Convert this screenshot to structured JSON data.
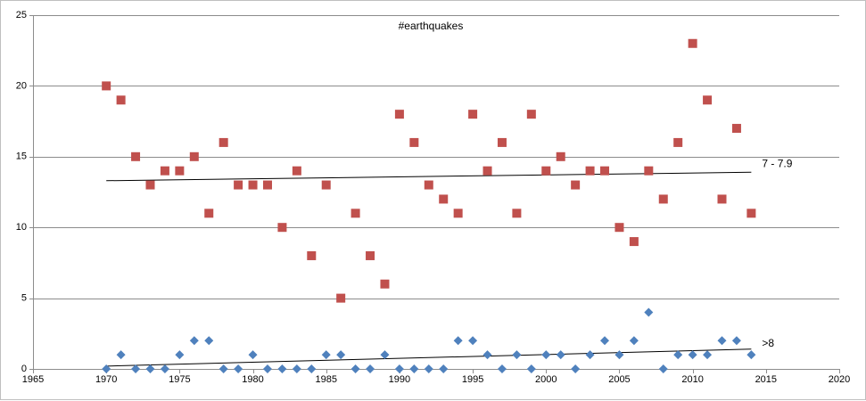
{
  "chart_data": {
    "type": "scatter",
    "title": "#earthquakes",
    "xlabel": "",
    "ylabel": "",
    "xlim": [
      1965,
      2020
    ],
    "ylim": [
      0,
      25
    ],
    "x_ticks": [
      1965,
      1970,
      1975,
      1980,
      1985,
      1990,
      1995,
      2000,
      2005,
      2010,
      2015,
      2020
    ],
    "y_ticks": [
      0,
      5,
      10,
      15,
      20,
      25
    ],
    "grid": "horizontal",
    "legend": "none",
    "series": [
      {
        "name": "7 - 7.9",
        "color": "#c0504d",
        "marker": "square",
        "x": [
          1970,
          1971,
          1972,
          1973,
          1974,
          1975,
          1976,
          1977,
          1978,
          1979,
          1980,
          1981,
          1982,
          1983,
          1984,
          1985,
          1986,
          1987,
          1988,
          1989,
          1990,
          1991,
          1992,
          1993,
          1994,
          1995,
          1996,
          1997,
          1998,
          1999,
          2000,
          2001,
          2002,
          2003,
          2004,
          2005,
          2006,
          2007,
          2008,
          2009,
          2010,
          2011,
          2012,
          2013,
          2014
        ],
        "y": [
          20,
          19,
          15,
          13,
          14,
          14,
          15,
          11,
          16,
          13,
          13,
          13,
          10,
          14,
          8,
          13,
          5,
          11,
          8,
          6,
          18,
          16,
          13,
          12,
          11,
          18,
          14,
          16,
          11,
          18,
          14,
          15,
          13,
          14,
          14,
          10,
          9,
          14,
          12,
          16,
          23,
          19,
          12,
          17,
          11
        ],
        "trendline": {
          "x": [
            1970,
            2014
          ],
          "y": [
            13.3,
            13.9
          ]
        }
      },
      {
        "name": ">8",
        "color": "#4f81bd",
        "marker": "diamond",
        "x": [
          1970,
          1971,
          1972,
          1973,
          1974,
          1975,
          1976,
          1977,
          1978,
          1979,
          1980,
          1981,
          1982,
          1983,
          1984,
          1985,
          1986,
          1987,
          1988,
          1989,
          1990,
          1991,
          1992,
          1993,
          1994,
          1995,
          1996,
          1997,
          1998,
          1999,
          2000,
          2001,
          2002,
          2003,
          2004,
          2005,
          2006,
          2007,
          2008,
          2009,
          2010,
          2011,
          2012,
          2013,
          2014
        ],
        "y": [
          0,
          1,
          0,
          0,
          0,
          1,
          2,
          2,
          0,
          0,
          1,
          0,
          0,
          0,
          0,
          1,
          1,
          0,
          0,
          1,
          0,
          0,
          0,
          0,
          2,
          2,
          1,
          0,
          1,
          0,
          1,
          1,
          0,
          1,
          2,
          1,
          2,
          4,
          0,
          1,
          1,
          1,
          2,
          2,
          1
        ],
        "trendline": {
          "x": [
            1970,
            2014
          ],
          "y": [
            0.2,
            1.4
          ]
        }
      }
    ]
  }
}
